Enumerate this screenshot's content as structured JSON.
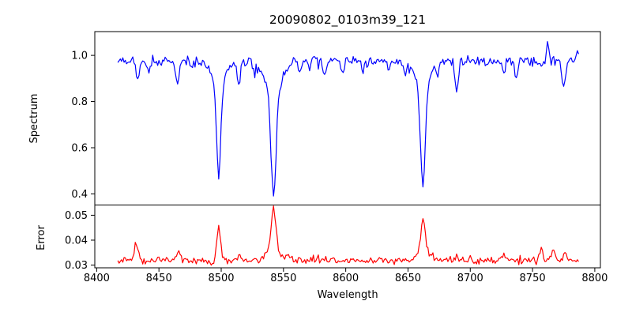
{
  "figure": {
    "title": "20090802_0103m39_121"
  },
  "chart_data": {
    "type": "line",
    "title": "20090802_0103m39_121",
    "xlabel": "Wavelength",
    "x_start": 8417,
    "x_end": 8787,
    "x_step": 1,
    "xlim": [
      8398.5,
      8804.5
    ],
    "x_ticks": [
      8400,
      8450,
      8500,
      8550,
      8600,
      8650,
      8700,
      8750,
      8800
    ],
    "x_tick_labels": [
      "8400",
      "8450",
      "8500",
      "8550",
      "8600",
      "8650",
      "8700",
      "8750",
      "8800"
    ],
    "grid": false,
    "legend": "none",
    "panels": [
      {
        "name": "spectrum",
        "ylabel": "Spectrum",
        "color": "#0000ff",
        "ylim": [
          0.352,
          1.103
        ],
        "y_ticks": [
          0.4,
          0.6,
          0.8,
          1.0
        ],
        "y_tick_labels": [
          "0.4",
          "0.6",
          "0.8",
          "1.0"
        ],
        "continuum": 0.978,
        "noise_amplitude": 0.011,
        "dip_spike_probability": 0.06,
        "dip_spike_max": 0.04,
        "absorption_lines": [
          {
            "center": 8498,
            "core_depth": 0.4,
            "core_sigma": 1.7,
            "wing_depth": 0.1,
            "wing_sigma": 5.5,
            "min_value": 0.5
          },
          {
            "center": 8542,
            "core_depth": 0.46,
            "core_sigma": 2.0,
            "wing_depth": 0.13,
            "wing_sigma": 7.0,
            "min_value": 0.39
          },
          {
            "center": 8662,
            "core_depth": 0.43,
            "core_sigma": 1.8,
            "wing_depth": 0.12,
            "wing_sigma": 6.0,
            "min_value": 0.43
          }
        ],
        "weak_lines": [
          [
            8433,
            0.07,
            1.3
          ],
          [
            8442,
            0.04,
            1.0
          ],
          [
            8465,
            0.1,
            1.3
          ],
          [
            8476,
            0.04,
            1.0
          ],
          [
            8514,
            0.1,
            1.4
          ],
          [
            8527,
            0.04,
            1.0
          ],
          [
            8563,
            0.05,
            1.1
          ],
          [
            8583,
            0.06,
            1.2
          ],
          [
            8598,
            0.05,
            1.0
          ],
          [
            8614,
            0.05,
            1.0
          ],
          [
            8635,
            0.05,
            1.0
          ],
          [
            8648,
            0.06,
            1.0
          ],
          [
            8674,
            0.05,
            1.0
          ],
          [
            8689,
            0.13,
            1.4
          ],
          [
            8713,
            0.04,
            1.0
          ],
          [
            8727,
            0.05,
            1.1
          ],
          [
            8737,
            0.09,
            1.2
          ],
          [
            8757,
            0.04,
            1.0
          ],
          [
            8775,
            0.12,
            1.4
          ]
        ],
        "emission_spikes": [
          [
            8762,
            0.085,
            0.9
          ],
          [
            8786,
            0.055,
            0.8
          ]
        ]
      },
      {
        "name": "error",
        "ylabel": "Error",
        "color": "#ff0000",
        "ylim": [
          0.0289,
          0.0541
        ],
        "y_ticks": [
          0.03,
          0.04,
          0.05
        ],
        "y_tick_labels": [
          "0.03",
          "0.04",
          "0.05"
        ],
        "baseline": 0.0318,
        "noise_amplitude": 0.0007,
        "spike_probability": 0.1,
        "spike_max": 0.0018,
        "peaks": [
          {
            "center": 8432,
            "height": 0.006,
            "sigma": 1.6
          },
          {
            "center": 8466,
            "height": 0.0035,
            "sigma": 1.4
          },
          {
            "center": 8498,
            "height": 0.012,
            "sigma": 1.6
          },
          {
            "center": 8515,
            "height": 0.002,
            "sigma": 1.2
          },
          {
            "center": 8542,
            "height": 0.018,
            "sigma": 1.9,
            "wing_height": 0.003,
            "wing_sigma": 7
          },
          {
            "center": 8662,
            "height": 0.014,
            "sigma": 1.7,
            "wing_height": 0.003,
            "wing_sigma": 6
          },
          {
            "center": 8689,
            "height": 0.0025,
            "sigma": 1.3
          },
          {
            "center": 8727,
            "height": 0.002,
            "sigma": 1.2
          },
          {
            "center": 8757,
            "height": 0.0045,
            "sigma": 1.2
          },
          {
            "center": 8767,
            "height": 0.005,
            "sigma": 1.2
          },
          {
            "center": 8776,
            "height": 0.003,
            "sigma": 1.1
          }
        ]
      }
    ]
  }
}
